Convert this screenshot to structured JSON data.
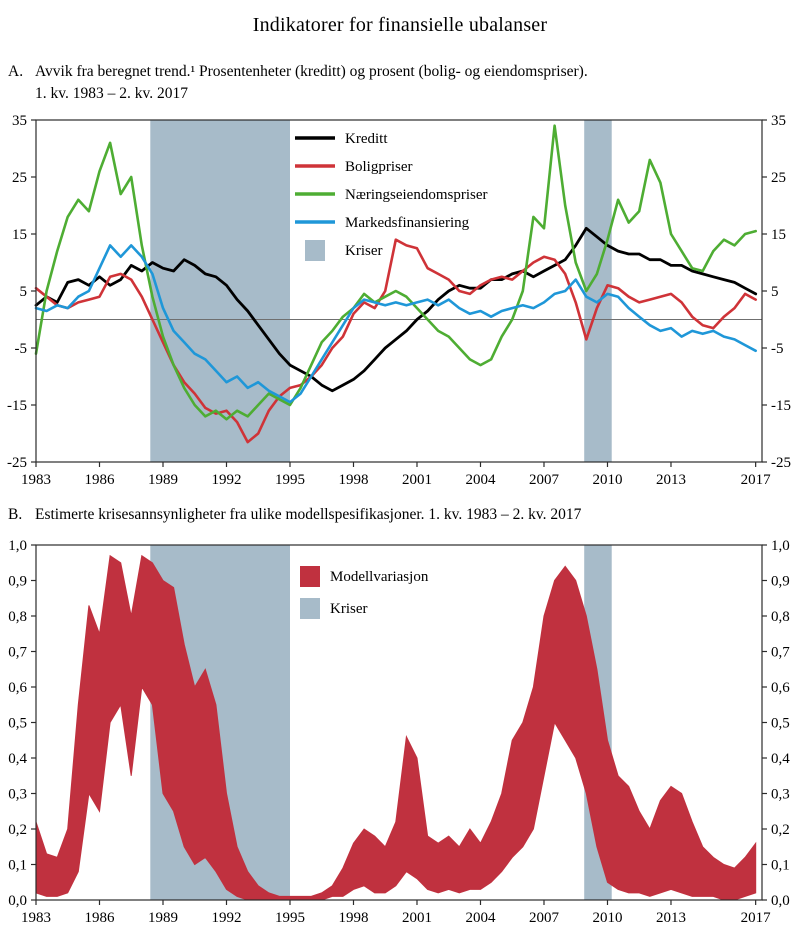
{
  "title": "Indikatorer for finansielle ubalanser",
  "panel_a": {
    "label": "A.",
    "line1": "Avvik fra beregnet trend.¹ Prosentenheter (kreditt) og prosent (bolig- og eiendomspriser).",
    "line2": "1. kv. 1983 – 2. kv. 2017"
  },
  "panel_b": {
    "label": "B.",
    "line1": "Estimerte krisesannsynligheter fra ulike modellspesifikasjoner. 1. kv. 1983 – 2. kv. 2017"
  },
  "colors": {
    "kreditt": "#000000",
    "boligpriser": "#cf3338",
    "naeringseiendomspriser": "#4ead33",
    "markedsfinansiering": "#1f97d8",
    "kriser_band": "#a7bbc9",
    "modellvariasjon": "#c0313f"
  },
  "chart_data": [
    {
      "id": "panel-a",
      "type": "line",
      "title": "Avvik fra beregnet trend. Prosentenheter (kreditt) og prosent (bolig- og eiendomspriser). 1. kv. 1983 – 2. kv. 2017",
      "x_start": 1983,
      "x_step": 0.5,
      "x_range": [
        1983,
        2017.3
      ],
      "ylim": [
        -25,
        35
      ],
      "yticks": [
        -25,
        -15,
        -5,
        5,
        15,
        25,
        35
      ],
      "xticks": [
        1983,
        1986,
        1989,
        1992,
        1995,
        1998,
        2001,
        2004,
        2007,
        2010,
        2013,
        2017
      ],
      "zero_line": true,
      "kriser_color": "#a7bbc9",
      "crisis_bands": [
        [
          1988.4,
          1995.0
        ],
        [
          2008.9,
          2010.2
        ]
      ],
      "legend": [
        "Kreditt",
        "Boligpriser",
        "Næringseiendomspriser",
        "Markedsfinansiering",
        "Kriser"
      ],
      "series": [
        {
          "name": "Kreditt",
          "color": "#000000",
          "width": 2.8,
          "values": [
            2.5,
            4,
            3,
            6.5,
            7,
            6,
            7.5,
            6,
            7,
            9.5,
            8.5,
            10,
            9,
            8.5,
            10.5,
            9.5,
            8,
            7.5,
            6,
            3.5,
            1.5,
            -1,
            -3.5,
            -6,
            -8,
            -9,
            -10,
            -11.5,
            -12.5,
            -11.5,
            -10.5,
            -9,
            -7,
            -5,
            -3.5,
            -2,
            0,
            1.5,
            3.5,
            5,
            6,
            5.5,
            5.5,
            7,
            7,
            8,
            8.5,
            7.5,
            8.5,
            9.5,
            10.5,
            13,
            16,
            14.5,
            13,
            12,
            11.5,
            11.5,
            10.5,
            10.5,
            9.5,
            9.5,
            8.5,
            8,
            7.5,
            7,
            6.5,
            5.5,
            4.5
          ]
        },
        {
          "name": "Boligpriser",
          "color": "#cf3338",
          "width": 2.6,
          "values": [
            5.5,
            4,
            2.5,
            2,
            3,
            3.5,
            4,
            7.5,
            8,
            7,
            4,
            0,
            -4,
            -8,
            -11,
            -13,
            -15.5,
            -16.5,
            -16,
            -18,
            -21.5,
            -20,
            -16,
            -13.5,
            -12,
            -11.5,
            -10,
            -8,
            -5,
            -3,
            1,
            3,
            2,
            5,
            14,
            13,
            12.5,
            9,
            8,
            7,
            5,
            4.5,
            6,
            7,
            7.5,
            7,
            8.5,
            10,
            11,
            10.5,
            8,
            3,
            -3.5,
            2,
            6,
            5.5,
            4,
            3,
            3.5,
            4,
            4.5,
            3,
            0.5,
            -1,
            -1.5,
            0.5,
            2,
            4.5,
            3.5
          ]
        },
        {
          "name": "Næringseiendomspriser",
          "color": "#4ead33",
          "width": 2.6,
          "values": [
            -6,
            5,
            12,
            18,
            21,
            19,
            26,
            31,
            22,
            25,
            13,
            4,
            -3,
            -8,
            -12,
            -15,
            -17,
            -16,
            -17.5,
            -16,
            -17,
            -15,
            -13,
            -14,
            -15,
            -12,
            -8,
            -4,
            -2,
            0.5,
            2,
            4.5,
            3,
            4,
            5,
            4,
            2,
            0,
            -2,
            -3,
            -5,
            -7,
            -8,
            -7,
            -3,
            0,
            5,
            18,
            16,
            34,
            20,
            10,
            5,
            8,
            14,
            21,
            17,
            19,
            28,
            24,
            15,
            12,
            9,
            8.5,
            12,
            14,
            13,
            15,
            15.5
          ]
        },
        {
          "name": "Markedsfinansiering",
          "color": "#1f97d8",
          "width": 2.6,
          "values": [
            2,
            1.5,
            2.5,
            2,
            4,
            5,
            9,
            13,
            11,
            13,
            11,
            8,
            2,
            -2,
            -4,
            -6,
            -7,
            -9,
            -11,
            -10,
            -12,
            -11,
            -12.5,
            -13.5,
            -14.5,
            -13,
            -10,
            -7,
            -4,
            -1,
            2,
            3.5,
            3,
            2.5,
            3,
            2.5,
            3,
            3.5,
            2.5,
            3.5,
            2,
            1,
            1.5,
            0.5,
            1.5,
            2,
            2.5,
            2,
            3,
            4.5,
            5,
            7,
            4,
            3,
            4.5,
            4,
            2,
            0.5,
            -1,
            -2,
            -1.5,
            -3,
            -2,
            -2.5,
            -2,
            -3,
            -3.5,
            -4.5,
            -5.5
          ]
        }
      ]
    },
    {
      "id": "panel-b",
      "type": "area",
      "title": "Estimerte krisesannsynligheter fra ulike modellspesifikasjoner. 1. kv. 1983 – 2. kv. 2017",
      "x_start": 1983,
      "x_step": 0.5,
      "x_range": [
        1983,
        2017.3
      ],
      "ylim": [
        0,
        1
      ],
      "yticks": [
        0,
        0.1,
        0.2,
        0.3,
        0.4,
        0.5,
        0.6,
        0.7,
        0.8,
        0.9,
        1
      ],
      "ytick_labels": [
        "0,0",
        "0,1",
        "0,2",
        "0,3",
        "0,4",
        "0,5",
        "0,6",
        "0,7",
        "0,8",
        "0,9",
        "1,0"
      ],
      "xticks": [
        1983,
        1986,
        1989,
        1992,
        1995,
        1998,
        2001,
        2004,
        2007,
        2010,
        2013,
        2017
      ],
      "zero_line": false,
      "kriser_color": "#a7bbc9",
      "crisis_bands": [
        [
          1988.4,
          1995.0
        ],
        [
          2008.9,
          2010.2
        ]
      ],
      "legend": [
        "Modellvariasjon",
        "Kriser"
      ],
      "series": [
        {
          "name": "Modellvariasjon",
          "color": "#c0313f",
          "upper": [
            0.22,
            0.13,
            0.12,
            0.2,
            0.55,
            0.83,
            0.75,
            0.97,
            0.95,
            0.8,
            0.97,
            0.95,
            0.9,
            0.88,
            0.72,
            0.6,
            0.65,
            0.55,
            0.3,
            0.15,
            0.08,
            0.04,
            0.02,
            0.01,
            0.01,
            0.01,
            0.01,
            0.02,
            0.04,
            0.09,
            0.16,
            0.2,
            0.18,
            0.15,
            0.22,
            0.46,
            0.4,
            0.18,
            0.16,
            0.18,
            0.15,
            0.2,
            0.16,
            0.22,
            0.3,
            0.45,
            0.5,
            0.6,
            0.8,
            0.9,
            0.94,
            0.9,
            0.8,
            0.65,
            0.45,
            0.35,
            0.32,
            0.25,
            0.2,
            0.28,
            0.32,
            0.3,
            0.22,
            0.15,
            0.12,
            0.1,
            0.09,
            0.12,
            0.16
          ],
          "lower": [
            0.02,
            0.01,
            0.01,
            0.02,
            0.08,
            0.3,
            0.25,
            0.5,
            0.55,
            0.35,
            0.6,
            0.55,
            0.3,
            0.25,
            0.15,
            0.1,
            0.12,
            0.08,
            0.03,
            0.01,
            0,
            0,
            0,
            0,
            0,
            0,
            0,
            0,
            0.01,
            0.01,
            0.03,
            0.04,
            0.02,
            0.02,
            0.04,
            0.08,
            0.06,
            0.03,
            0.02,
            0.03,
            0.02,
            0.03,
            0.03,
            0.05,
            0.08,
            0.12,
            0.15,
            0.2,
            0.35,
            0.5,
            0.45,
            0.4,
            0.3,
            0.15,
            0.05,
            0.03,
            0.02,
            0.02,
            0.01,
            0.02,
            0.03,
            0.02,
            0.01,
            0.01,
            0.01,
            0,
            0,
            0.01,
            0.02
          ]
        }
      ]
    }
  ]
}
